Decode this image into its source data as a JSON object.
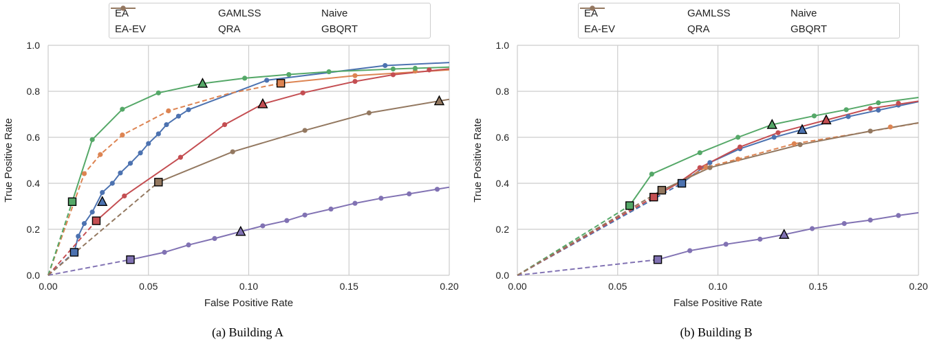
{
  "chart_data": [
    {
      "type": "line",
      "caption": "(a) Building A",
      "xlabel": "False Positive Rate",
      "ylabel": "True Positive Rate",
      "xlim": [
        0,
        0.2
      ],
      "ylim": [
        0,
        1.0
      ],
      "xticks": [
        "0.00",
        "0.05",
        "0.10",
        "0.15",
        "0.20"
      ],
      "yticks": [
        "0.0",
        "0.2",
        "0.4",
        "0.6",
        "0.8",
        "1.0"
      ],
      "grid": true,
      "legend_position": "top-center",
      "series": [
        {
          "name": "EA",
          "color": "#4c72b0",
          "dashed": [
            [
              0,
              0
            ],
            [
              0.013,
              0.1
            ]
          ],
          "solid": [
            [
              0.013,
              0.1
            ],
            [
              0.015,
              0.17
            ],
            [
              0.018,
              0.225
            ],
            [
              0.022,
              0.275
            ],
            [
              0.027,
              0.36
            ],
            [
              0.032,
              0.4
            ],
            [
              0.036,
              0.445
            ],
            [
              0.041,
              0.487
            ],
            [
              0.046,
              0.532
            ],
            [
              0.05,
              0.573
            ],
            [
              0.055,
              0.615
            ],
            [
              0.059,
              0.655
            ],
            [
              0.065,
              0.692
            ],
            [
              0.07,
              0.72
            ],
            [
              0.109,
              0.848
            ],
            [
              0.168,
              0.912
            ],
            [
              0.2,
              0.925
            ]
          ],
          "points": [
            [
              0.015,
              0.17
            ],
            [
              0.018,
              0.225
            ],
            [
              0.022,
              0.275
            ],
            [
              0.027,
              0.36
            ],
            [
              0.032,
              0.4
            ],
            [
              0.036,
              0.445
            ],
            [
              0.041,
              0.487
            ],
            [
              0.046,
              0.532
            ],
            [
              0.05,
              0.573
            ],
            [
              0.055,
              0.615
            ],
            [
              0.059,
              0.655
            ],
            [
              0.065,
              0.692
            ],
            [
              0.07,
              0.72
            ],
            [
              0.109,
              0.848
            ],
            [
              0.168,
              0.912
            ]
          ],
          "square": [
            0.013,
            0.1
          ],
          "triangle": [
            0.027,
            0.32
          ]
        },
        {
          "name": "EA-EV",
          "color": "#dd8452",
          "dashed": [
            [
              0,
              0
            ],
            [
              0.018,
              0.442
            ],
            [
              0.026,
              0.525
            ],
            [
              0.037,
              0.61
            ],
            [
              0.06,
              0.715
            ],
            [
              0.09,
              0.79
            ],
            [
              0.116,
              0.835
            ]
          ],
          "solid": [
            [
              0.116,
              0.835
            ],
            [
              0.153,
              0.868
            ],
            [
              0.2,
              0.893
            ]
          ],
          "points": [
            [
              0.018,
              0.442
            ],
            [
              0.026,
              0.525
            ],
            [
              0.037,
              0.61
            ],
            [
              0.06,
              0.715
            ],
            [
              0.153,
              0.868
            ],
            [
              0.183,
              0.888
            ]
          ],
          "square": [
            0.116,
            0.835
          ],
          "triangle": null
        },
        {
          "name": "GAMLSS",
          "color": "#55a868",
          "dashed": [
            [
              0,
              0
            ],
            [
              0.012,
              0.32
            ]
          ],
          "solid": [
            [
              0.012,
              0.32
            ],
            [
              0.022,
              0.59
            ],
            [
              0.037,
              0.722
            ],
            [
              0.055,
              0.793
            ],
            [
              0.077,
              0.834
            ],
            [
              0.098,
              0.857
            ],
            [
              0.12,
              0.873
            ],
            [
              0.14,
              0.885
            ],
            [
              0.172,
              0.897
            ],
            [
              0.2,
              0.905
            ]
          ],
          "points": [
            [
              0.022,
              0.59
            ],
            [
              0.037,
              0.722
            ],
            [
              0.055,
              0.793
            ],
            [
              0.098,
              0.857
            ],
            [
              0.12,
              0.873
            ],
            [
              0.14,
              0.885
            ],
            [
              0.172,
              0.897
            ],
            [
              0.183,
              0.9
            ]
          ],
          "square": [
            0.012,
            0.32
          ],
          "triangle": [
            0.077,
            0.834
          ]
        },
        {
          "name": "QRA",
          "color": "#c44e52",
          "dashed": [
            [
              0,
              0
            ],
            [
              0.024,
              0.237
            ]
          ],
          "solid": [
            [
              0.024,
              0.237
            ],
            [
              0.038,
              0.345
            ],
            [
              0.066,
              0.513
            ],
            [
              0.088,
              0.655
            ],
            [
              0.107,
              0.745
            ],
            [
              0.127,
              0.793
            ],
            [
              0.153,
              0.843
            ],
            [
              0.172,
              0.872
            ],
            [
              0.2,
              0.898
            ]
          ],
          "points": [
            [
              0.038,
              0.345
            ],
            [
              0.066,
              0.513
            ],
            [
              0.088,
              0.655
            ],
            [
              0.127,
              0.793
            ],
            [
              0.153,
              0.843
            ],
            [
              0.172,
              0.872
            ],
            [
              0.19,
              0.893
            ]
          ],
          "square": [
            0.024,
            0.237
          ],
          "triangle": [
            0.107,
            0.745
          ]
        },
        {
          "name": "Naive",
          "color": "#8172b3",
          "dashed": [
            [
              0,
              0
            ],
            [
              0.041,
              0.068
            ]
          ],
          "solid": [
            [
              0.041,
              0.068
            ],
            [
              0.058,
              0.1
            ],
            [
              0.07,
              0.132
            ],
            [
              0.083,
              0.16
            ],
            [
              0.096,
              0.19
            ],
            [
              0.107,
              0.215
            ],
            [
              0.119,
              0.238
            ],
            [
              0.128,
              0.262
            ],
            [
              0.141,
              0.288
            ],
            [
              0.153,
              0.313
            ],
            [
              0.166,
              0.335
            ],
            [
              0.18,
              0.354
            ],
            [
              0.2,
              0.383
            ]
          ],
          "points": [
            [
              0.058,
              0.1
            ],
            [
              0.07,
              0.132
            ],
            [
              0.083,
              0.16
            ],
            [
              0.107,
              0.215
            ],
            [
              0.119,
              0.238
            ],
            [
              0.128,
              0.262
            ],
            [
              0.141,
              0.288
            ],
            [
              0.153,
              0.313
            ],
            [
              0.166,
              0.335
            ],
            [
              0.18,
              0.354
            ],
            [
              0.194,
              0.374
            ]
          ],
          "square": [
            0.041,
            0.068
          ],
          "triangle": [
            0.096,
            0.19
          ]
        },
        {
          "name": "GBQRT",
          "color": "#937860",
          "dashed": [
            [
              0,
              0
            ],
            [
              0.055,
              0.405
            ]
          ],
          "solid": [
            [
              0.055,
              0.405
            ],
            [
              0.092,
              0.537
            ],
            [
              0.128,
              0.63
            ],
            [
              0.16,
              0.706
            ],
            [
              0.195,
              0.758
            ],
            [
              0.2,
              0.765
            ]
          ],
          "points": [
            [
              0.092,
              0.537
            ],
            [
              0.128,
              0.63
            ],
            [
              0.16,
              0.706
            ]
          ],
          "square": [
            0.055,
            0.405
          ],
          "triangle": [
            0.195,
            0.758
          ]
        }
      ]
    },
    {
      "type": "line",
      "caption": "(b) Building B",
      "xlabel": "False Positive Rate",
      "ylabel": "True Positive Rate",
      "xlim": [
        0,
        0.2
      ],
      "ylim": [
        0,
        1.0
      ],
      "xticks": [
        "0.00",
        "0.05",
        "0.10",
        "0.15",
        "0.20"
      ],
      "yticks": [
        "0.0",
        "0.2",
        "0.4",
        "0.6",
        "0.8",
        "1.0"
      ],
      "grid": true,
      "legend_position": "top-center",
      "series": [
        {
          "name": "EA",
          "color": "#4c72b0",
          "dashed": [
            [
              0,
              0
            ],
            [
              0.082,
              0.4
            ]
          ],
          "solid": [
            [
              0.082,
              0.4
            ],
            [
              0.096,
              0.49
            ],
            [
              0.111,
              0.55
            ],
            [
              0.128,
              0.6
            ],
            [
              0.142,
              0.633
            ],
            [
              0.165,
              0.69
            ],
            [
              0.18,
              0.718
            ],
            [
              0.2,
              0.755
            ]
          ],
          "points": [
            [
              0.096,
              0.49
            ],
            [
              0.111,
              0.55
            ],
            [
              0.128,
              0.6
            ],
            [
              0.165,
              0.69
            ],
            [
              0.18,
              0.718
            ],
            [
              0.19,
              0.74
            ]
          ],
          "square": [
            0.082,
            0.4
          ],
          "triangle": [
            0.142,
            0.633
          ]
        },
        {
          "name": "EA-EV",
          "color": "#dd8452",
          "dashed": [
            [
              0,
              0
            ],
            [
              0.094,
              0.47
            ],
            [
              0.11,
              0.505
            ],
            [
              0.138,
              0.572
            ],
            [
              0.165,
              0.61
            ],
            [
              0.2,
              0.662
            ]
          ],
          "solid": [],
          "points": [
            [
              0.094,
              0.47
            ],
            [
              0.11,
              0.505
            ],
            [
              0.138,
              0.572
            ],
            [
              0.186,
              0.645
            ]
          ],
          "square": null,
          "triangle": null
        },
        {
          "name": "GAMLSS",
          "color": "#55a868",
          "dashed": [
            [
              0,
              0
            ],
            [
              0.056,
              0.303
            ]
          ],
          "solid": [
            [
              0.056,
              0.303
            ],
            [
              0.067,
              0.44
            ],
            [
              0.091,
              0.533
            ],
            [
              0.11,
              0.6
            ],
            [
              0.127,
              0.655
            ],
            [
              0.148,
              0.693
            ],
            [
              0.164,
              0.72
            ],
            [
              0.18,
              0.75
            ],
            [
              0.2,
              0.773
            ]
          ],
          "points": [
            [
              0.067,
              0.44
            ],
            [
              0.091,
              0.533
            ],
            [
              0.11,
              0.6
            ],
            [
              0.148,
              0.693
            ],
            [
              0.164,
              0.72
            ],
            [
              0.18,
              0.75
            ]
          ],
          "square": [
            0.056,
            0.303
          ],
          "triangle": [
            0.127,
            0.655
          ]
        },
        {
          "name": "QRA",
          "color": "#c44e52",
          "dashed": [
            [
              0,
              0
            ],
            [
              0.068,
              0.34
            ]
          ],
          "solid": [
            [
              0.068,
              0.34
            ],
            [
              0.08,
              0.4
            ],
            [
              0.091,
              0.468
            ],
            [
              0.111,
              0.558
            ],
            [
              0.13,
              0.62
            ],
            [
              0.154,
              0.675
            ],
            [
              0.176,
              0.725
            ],
            [
              0.2,
              0.757
            ]
          ],
          "points": [
            [
              0.091,
              0.468
            ],
            [
              0.111,
              0.558
            ],
            [
              0.13,
              0.62
            ],
            [
              0.176,
              0.725
            ],
            [
              0.19,
              0.748
            ]
          ],
          "square": [
            0.068,
            0.34
          ],
          "triangle": [
            0.154,
            0.675
          ]
        },
        {
          "name": "Naive",
          "color": "#8172b3",
          "dashed": [
            [
              0,
              0
            ],
            [
              0.07,
              0.068
            ]
          ],
          "solid": [
            [
              0.07,
              0.068
            ],
            [
              0.086,
              0.107
            ],
            [
              0.104,
              0.135
            ],
            [
              0.121,
              0.157
            ],
            [
              0.133,
              0.177
            ],
            [
              0.147,
              0.203
            ],
            [
              0.163,
              0.225
            ],
            [
              0.176,
              0.24
            ],
            [
              0.19,
              0.26
            ],
            [
              0.2,
              0.272
            ]
          ],
          "points": [
            [
              0.086,
              0.107
            ],
            [
              0.104,
              0.135
            ],
            [
              0.121,
              0.157
            ],
            [
              0.147,
              0.203
            ],
            [
              0.163,
              0.225
            ],
            [
              0.176,
              0.24
            ],
            [
              0.19,
              0.26
            ]
          ],
          "square": [
            0.07,
            0.068
          ],
          "triangle": [
            0.133,
            0.177
          ]
        },
        {
          "name": "GBQRT",
          "color": "#937860",
          "dashed": [
            [
              0,
              0
            ],
            [
              0.072,
              0.37
            ]
          ],
          "solid": [
            [
              0.072,
              0.37
            ],
            [
              0.096,
              0.468
            ],
            [
              0.141,
              0.568
            ],
            [
              0.176,
              0.627
            ],
            [
              0.2,
              0.663
            ]
          ],
          "points": [
            [
              0.096,
              0.468
            ],
            [
              0.141,
              0.568
            ],
            [
              0.176,
              0.627
            ]
          ],
          "square": [
            0.072,
            0.37
          ],
          "triangle": null
        }
      ]
    }
  ]
}
